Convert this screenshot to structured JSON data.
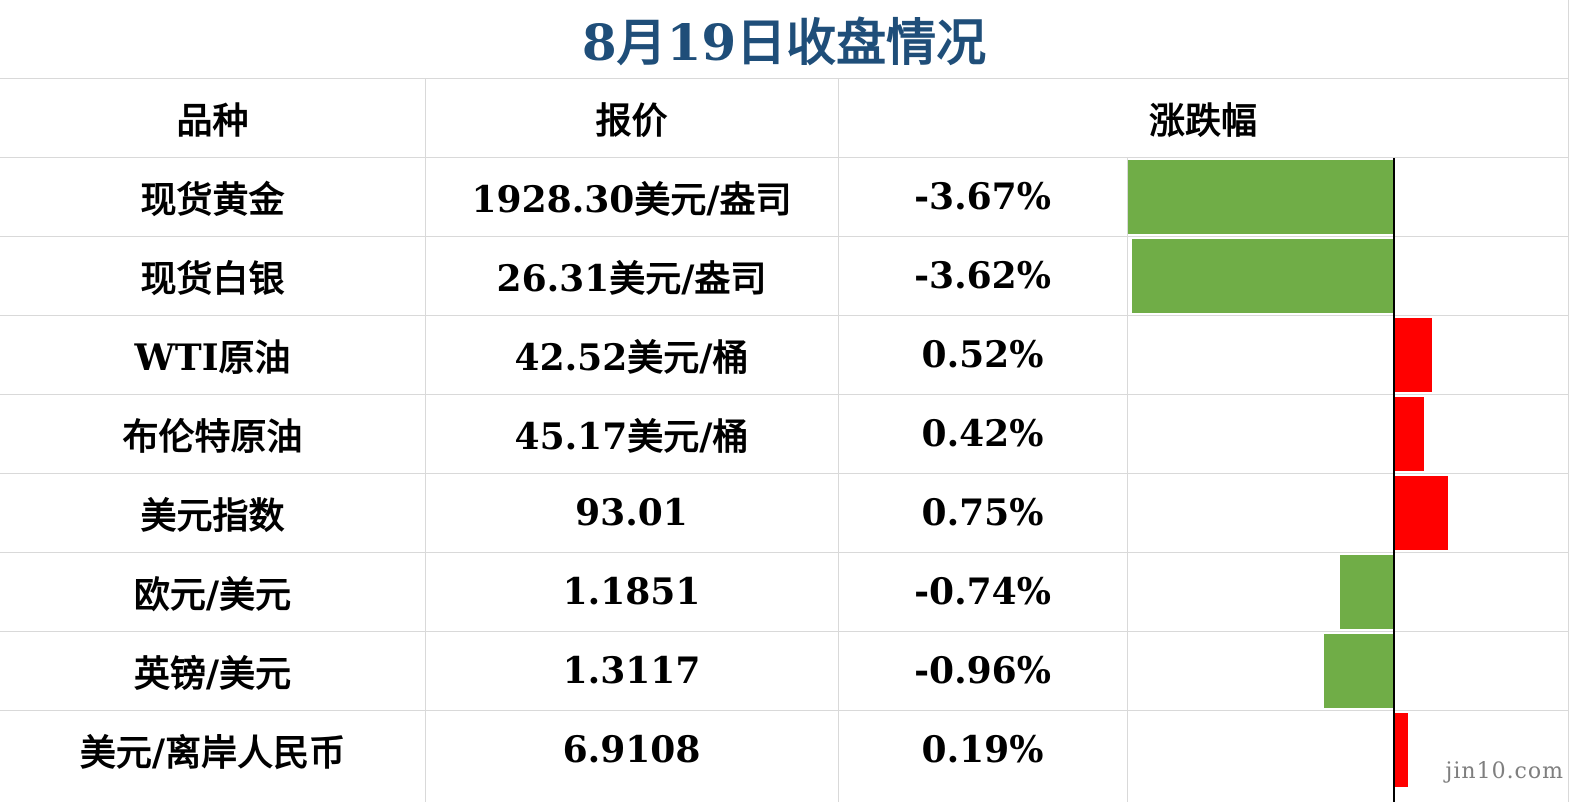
{
  "title": "8月19日收盘情况",
  "headers": {
    "name": "品种",
    "price": "报价",
    "change": "涨跌幅"
  },
  "rows": [
    {
      "name": "现货黄金",
      "price": "1928.30美元/盎司",
      "pct": "-3.67%",
      "value": -3.67
    },
    {
      "name": "现货白银",
      "price": "26.31美元/盎司",
      "pct": "-3.62%",
      "value": -3.62
    },
    {
      "name": "WTI原油",
      "price": "42.52美元/桶",
      "pct": "0.52%",
      "value": 0.52
    },
    {
      "name": "布伦特原油",
      "price": "45.17美元/桶",
      "pct": "0.42%",
      "value": 0.42
    },
    {
      "name": "美元指数",
      "price": "93.01",
      "pct": "0.75%",
      "value": 0.75
    },
    {
      "name": "欧元/美元",
      "price": "1.1851",
      "pct": "-0.74%",
      "value": -0.74
    },
    {
      "name": "英镑/美元",
      "price": "1.3117",
      "pct": "-0.96%",
      "value": -0.96
    },
    {
      "name": "美元/离岸人民币",
      "price": "6.9108",
      "pct": "0.19%",
      "value": 0.19
    }
  ],
  "colors": {
    "negative": "#70ad47",
    "positive": "#ff0000",
    "title": "#1f4e79"
  },
  "watermark": "jin10.com"
}
